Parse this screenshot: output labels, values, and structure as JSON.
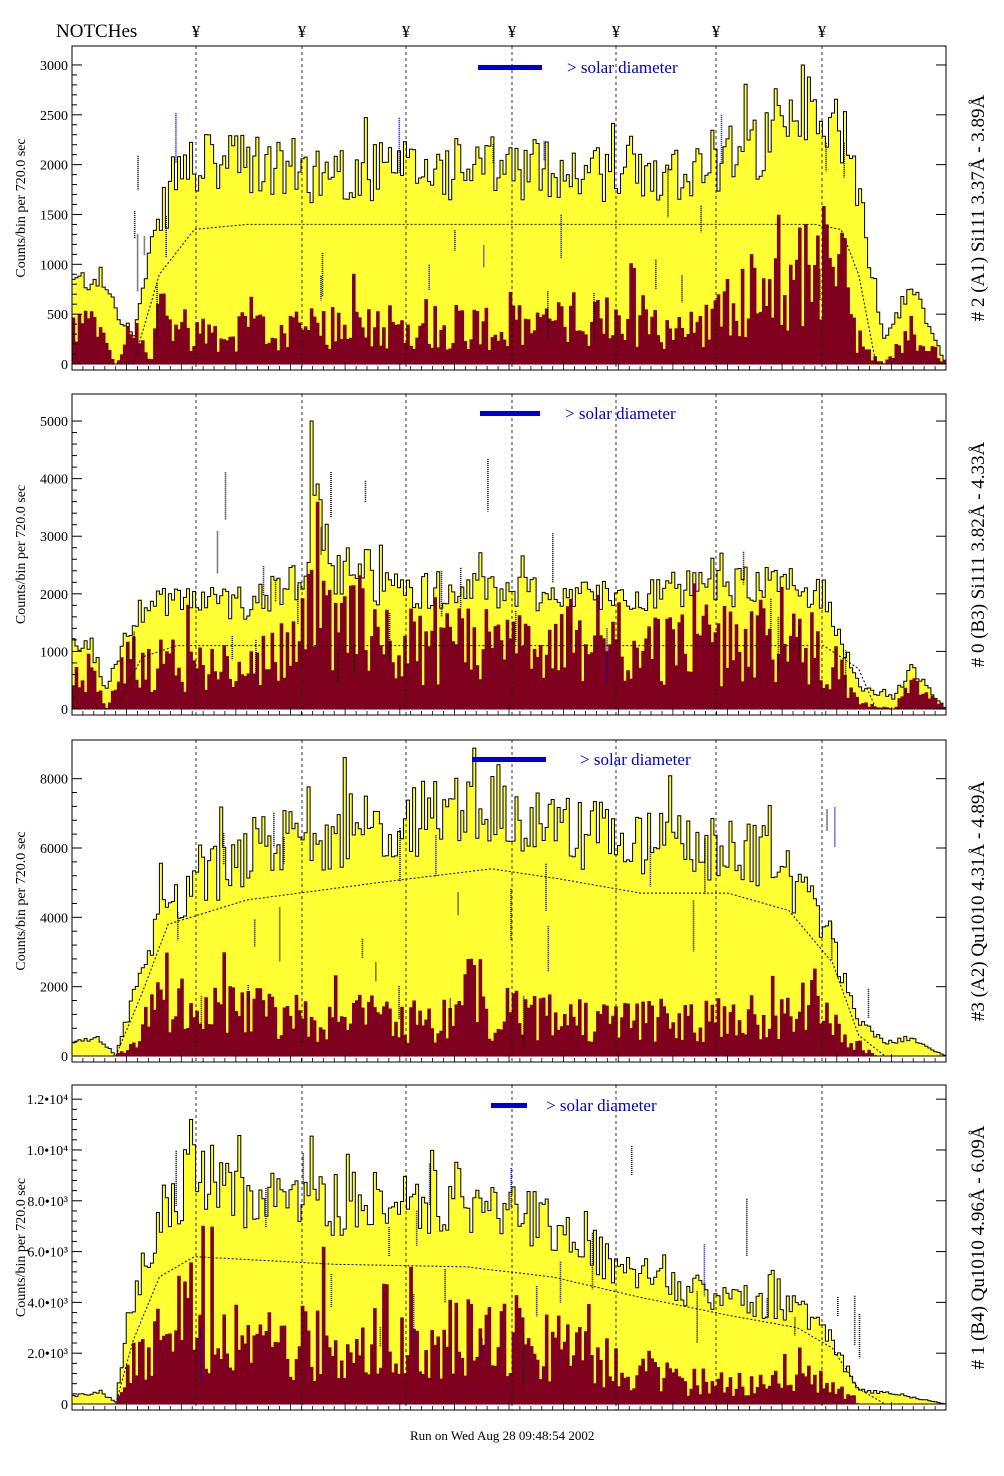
{
  "header": {
    "notch_label": "NOTCHes",
    "notch_symbol": "¥",
    "notch_positions": [
      196,
      302,
      406,
      512,
      616,
      716,
      822
    ]
  },
  "footer": {
    "run_label": "Run on Wed Aug 28 09:48:54 2002"
  },
  "colors": {
    "accent_blue": "#0000cc",
    "fill_yellow": "#ffff33",
    "fill_maroon": "#800020",
    "axis": "#000000"
  },
  "chart_data": [
    {
      "type": "area",
      "ylabel": "Counts/bin per   720.0 sec",
      "panel_label": "# 2 (A1) Si111  3.37Å - 3.89Å",
      "legend_text": "> solar diameter",
      "ylim": [
        0,
        3150
      ],
      "yticks": [
        0,
        500,
        1000,
        1500,
        2000,
        2500,
        3000
      ],
      "ytick_labels": [
        "0",
        "500",
        "1000",
        "1500",
        "2000",
        "2500",
        "3000"
      ],
      "notch_markers": [
        196,
        302,
        406,
        512,
        616,
        716,
        822
      ],
      "yellow_profile": [
        [
          0,
          820
        ],
        [
          0.03,
          900
        ],
        [
          0.07,
          280
        ],
        [
          0.09,
          1100
        ],
        [
          0.12,
          2000
        ],
        [
          0.18,
          2050
        ],
        [
          0.3,
          1950
        ],
        [
          0.45,
          2000
        ],
        [
          0.55,
          2000
        ],
        [
          0.62,
          1950
        ],
        [
          0.7,
          2000
        ],
        [
          0.78,
          2200
        ],
        [
          0.84,
          2400
        ],
        [
          0.88,
          2500
        ],
        [
          0.9,
          1700
        ],
        [
          0.93,
          250
        ],
        [
          0.96,
          800
        ],
        [
          1,
          0
        ]
      ],
      "maroon_profile": [
        [
          0,
          400
        ],
        [
          0.03,
          320
        ],
        [
          0.05,
          0
        ],
        [
          0.07,
          380
        ],
        [
          0.09,
          0
        ],
        [
          0.1,
          500
        ],
        [
          0.15,
          300
        ],
        [
          0.3,
          350
        ],
        [
          0.4,
          420
        ],
        [
          0.5,
          350
        ],
        [
          0.6,
          480
        ],
        [
          0.7,
          300
        ],
        [
          0.78,
          700
        ],
        [
          0.85,
          950
        ],
        [
          0.88,
          1100
        ],
        [
          0.9,
          150
        ],
        [
          0.93,
          0
        ],
        [
          0.96,
          350
        ],
        [
          1,
          0
        ]
      ],
      "mean_profile": [
        [
          0,
          0
        ],
        [
          0.07,
          0
        ],
        [
          0.1,
          900
        ],
        [
          0.14,
          1350
        ],
        [
          0.2,
          1400
        ],
        [
          0.85,
          1400
        ],
        [
          0.88,
          1350
        ],
        [
          0.9,
          900
        ],
        [
          0.92,
          0
        ],
        [
          1,
          0
        ]
      ],
      "peak": {
        "xfrac": 0.835,
        "value": 3000
      }
    },
    {
      "type": "area",
      "ylabel": "Counts/bin per   720.0 sec",
      "panel_label": "# 0 (B3) Si111  3.82Å - 4.33Å",
      "legend_text": "> solar diameter",
      "ylim": [
        0,
        5400
      ],
      "yticks": [
        0,
        1000,
        2000,
        3000,
        4000,
        5000
      ],
      "ytick_labels": [
        "0",
        "1000",
        "2000",
        "3000",
        "4000",
        "5000"
      ],
      "notch_markers": [
        196,
        302,
        406,
        512,
        616,
        716,
        822
      ],
      "yellow_profile": [
        [
          0,
          1100
        ],
        [
          0.02,
          1250
        ],
        [
          0.04,
          300
        ],
        [
          0.06,
          1300
        ],
        [
          0.09,
          2000
        ],
        [
          0.15,
          1900
        ],
        [
          0.2,
          1900
        ],
        [
          0.26,
          2300
        ],
        [
          0.28,
          3500
        ],
        [
          0.3,
          2300
        ],
        [
          0.33,
          2700
        ],
        [
          0.35,
          2200
        ],
        [
          0.4,
          2100
        ],
        [
          0.5,
          2100
        ],
        [
          0.6,
          2000
        ],
        [
          0.7,
          2100
        ],
        [
          0.8,
          2200
        ],
        [
          0.86,
          2100
        ],
        [
          0.9,
          400
        ],
        [
          0.94,
          200
        ],
        [
          0.96,
          700
        ],
        [
          1,
          0
        ]
      ],
      "maroon_profile": [
        [
          0,
          350
        ],
        [
          0.02,
          600
        ],
        [
          0.04,
          0
        ],
        [
          0.06,
          900
        ],
        [
          0.1,
          800
        ],
        [
          0.2,
          700
        ],
        [
          0.26,
          1200
        ],
        [
          0.28,
          3200
        ],
        [
          0.3,
          1200
        ],
        [
          0.33,
          2500
        ],
        [
          0.35,
          1100
        ],
        [
          0.4,
          1100
        ],
        [
          0.5,
          1100
        ],
        [
          0.6,
          1000
        ],
        [
          0.7,
          1100
        ],
        [
          0.8,
          1100
        ],
        [
          0.86,
          1000
        ],
        [
          0.9,
          100
        ],
        [
          0.94,
          0
        ],
        [
          0.96,
          400
        ],
        [
          1,
          0
        ]
      ],
      "mean_profile": [
        [
          0,
          0
        ],
        [
          0.05,
          0
        ],
        [
          0.08,
          900
        ],
        [
          0.12,
          1100
        ],
        [
          0.86,
          1100
        ],
        [
          0.9,
          700
        ],
        [
          0.92,
          0
        ],
        [
          1,
          0
        ]
      ],
      "peak": {
        "xfrac": 0.275,
        "value": 5000
      }
    },
    {
      "type": "area",
      "ylabel": "Counts/bin per   720.0 sec",
      "panel_label": "#3 (A2) Qu1010  4.31Å - 4.89Å",
      "legend_text": "> solar diameter",
      "ylim": [
        0,
        9000
      ],
      "yticks": [
        0,
        2000,
        4000,
        6000,
        8000
      ],
      "ytick_labels": [
        "0",
        "2000",
        "4000",
        "6000",
        "8000"
      ],
      "notch_markers": [
        196,
        302,
        406,
        512,
        616,
        716,
        822
      ],
      "yellow_profile": [
        [
          0,
          400
        ],
        [
          0.03,
          500
        ],
        [
          0.05,
          0
        ],
        [
          0.08,
          2500
        ],
        [
          0.1,
          4300
        ],
        [
          0.15,
          5200
        ],
        [
          0.2,
          6000
        ],
        [
          0.3,
          6600
        ],
        [
          0.4,
          7000
        ],
        [
          0.48,
          7400
        ],
        [
          0.52,
          6800
        ],
        [
          0.6,
          6500
        ],
        [
          0.7,
          6200
        ],
        [
          0.8,
          5800
        ],
        [
          0.86,
          4000
        ],
        [
          0.9,
          1000
        ],
        [
          0.93,
          400
        ],
        [
          0.96,
          500
        ],
        [
          1,
          0
        ]
      ],
      "maroon_profile": [
        [
          0,
          0
        ],
        [
          0.05,
          0
        ],
        [
          0.07,
          300
        ],
        [
          0.1,
          1500
        ],
        [
          0.15,
          1300
        ],
        [
          0.3,
          1100
        ],
        [
          0.4,
          1000
        ],
        [
          0.5,
          1200
        ],
        [
          0.6,
          1000
        ],
        [
          0.7,
          1000
        ],
        [
          0.8,
          1100
        ],
        [
          0.86,
          1400
        ],
        [
          0.89,
          500
        ],
        [
          0.92,
          0
        ],
        [
          1,
          0
        ]
      ],
      "mean_profile": [
        [
          0,
          0
        ],
        [
          0.05,
          0
        ],
        [
          0.08,
          1800
        ],
        [
          0.11,
          3800
        ],
        [
          0.2,
          4500
        ],
        [
          0.35,
          5000
        ],
        [
          0.48,
          5400
        ],
        [
          0.56,
          5100
        ],
        [
          0.65,
          4700
        ],
        [
          0.75,
          4700
        ],
        [
          0.82,
          4200
        ],
        [
          0.87,
          2700
        ],
        [
          0.9,
          600
        ],
        [
          0.93,
          0
        ],
        [
          1,
          0
        ]
      ],
      "peak": {
        "xfrac": 0.487,
        "value": 8400
      }
    },
    {
      "type": "area",
      "ylabel": "Counts/bin per   720.0 sec",
      "panel_label": "# 1 (B4) Qu1010 4.96Å - 6.09Å",
      "legend_text": "> solar diameter",
      "ylim": [
        0,
        12400
      ],
      "yticks": [
        0,
        2000,
        4000,
        6000,
        8000,
        10000,
        12000
      ],
      "ytick_labels": [
        "0",
        "2.0•10³",
        "4.0•10³",
        "6.0•10³",
        "8.0•10³",
        "1.0•10⁴",
        "1.2•10⁴"
      ],
      "notch_markers": [
        196,
        302,
        406,
        512,
        616,
        716,
        822
      ],
      "yellow_profile": [
        [
          0,
          300
        ],
        [
          0.03,
          500
        ],
        [
          0.05,
          100
        ],
        [
          0.07,
          4000
        ],
        [
          0.1,
          7500
        ],
        [
          0.14,
          9500
        ],
        [
          0.2,
          8200
        ],
        [
          0.3,
          8000
        ],
        [
          0.4,
          8000
        ],
        [
          0.48,
          8300
        ],
        [
          0.55,
          7200
        ],
        [
          0.62,
          5500
        ],
        [
          0.7,
          4600
        ],
        [
          0.78,
          4200
        ],
        [
          0.84,
          3700
        ],
        [
          0.88,
          1800
        ],
        [
          0.9,
          600
        ],
        [
          0.94,
          400
        ],
        [
          1,
          0
        ]
      ],
      "maroon_profile": [
        [
          0,
          0
        ],
        [
          0.05,
          0
        ],
        [
          0.07,
          1500
        ],
        [
          0.1,
          2500
        ],
        [
          0.14,
          3500
        ],
        [
          0.2,
          2200
        ],
        [
          0.3,
          2500
        ],
        [
          0.4,
          2200
        ],
        [
          0.48,
          3000
        ],
        [
          0.55,
          2300
        ],
        [
          0.62,
          1500
        ],
        [
          0.7,
          900
        ],
        [
          0.78,
          700
        ],
        [
          0.84,
          1000
        ],
        [
          0.88,
          500
        ],
        [
          0.9,
          0
        ],
        [
          1,
          0
        ]
      ],
      "mean_profile": [
        [
          0,
          0
        ],
        [
          0.05,
          0
        ],
        [
          0.07,
          2500
        ],
        [
          0.1,
          5000
        ],
        [
          0.14,
          5800
        ],
        [
          0.3,
          5500
        ],
        [
          0.45,
          5400
        ],
        [
          0.55,
          5000
        ],
        [
          0.65,
          4200
        ],
        [
          0.75,
          3500
        ],
        [
          0.83,
          3000
        ],
        [
          0.87,
          2200
        ],
        [
          0.9,
          600
        ],
        [
          0.93,
          0
        ],
        [
          1,
          0
        ]
      ],
      "peak": {
        "xfrac": 0.135,
        "value": 11200
      }
    }
  ]
}
